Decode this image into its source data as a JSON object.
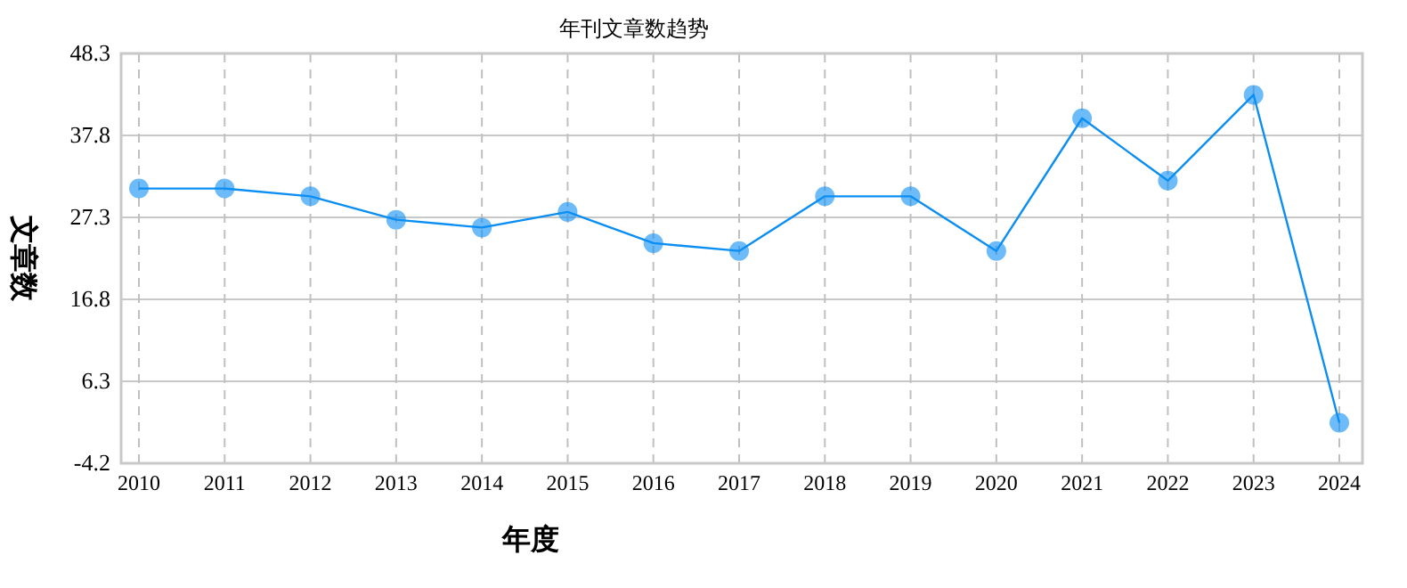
{
  "chart_data": {
    "type": "line",
    "title": "年刊文章数趋势",
    "xlabel": "年度",
    "ylabel": "文章数",
    "categories": [
      "2010",
      "2011",
      "2012",
      "2013",
      "2014",
      "2015",
      "2016",
      "2017",
      "2018",
      "2019",
      "2020",
      "2021",
      "2022",
      "2023",
      "2024"
    ],
    "series": [
      {
        "color": "#0b8ef3",
        "values": [
          31,
          31,
          30,
          27,
          26,
          28,
          24,
          23,
          30,
          30,
          23,
          40,
          32,
          43,
          1
        ]
      }
    ],
    "ylim": [
      -4.2,
      48.3
    ],
    "yticks": [
      -4.2,
      6.3,
      16.8,
      27.3,
      37.8,
      48.3
    ],
    "grid": true,
    "marker": "circle"
  }
}
